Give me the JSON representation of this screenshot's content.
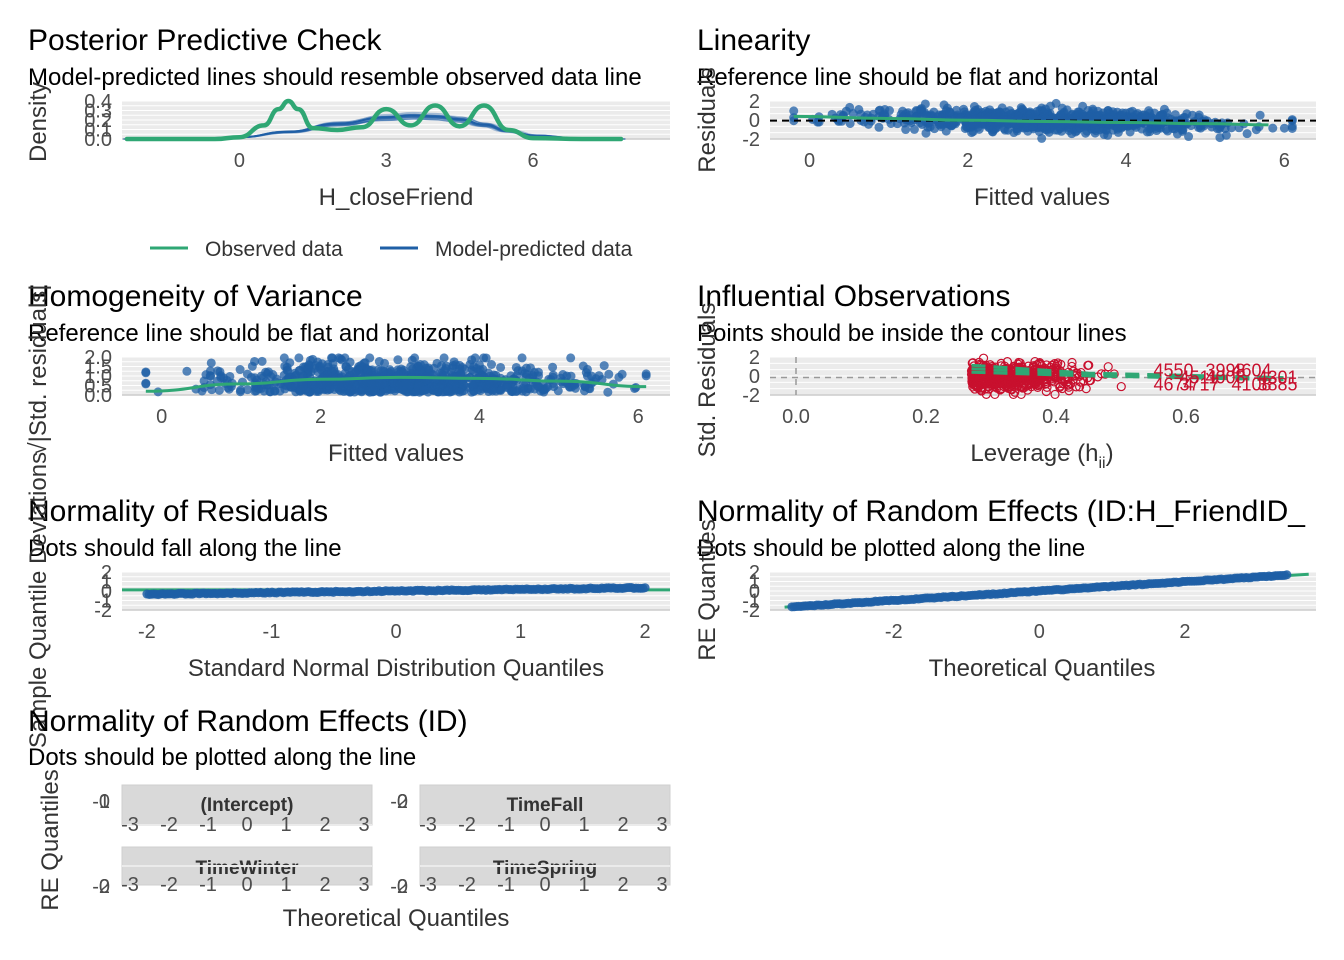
{
  "colors": {
    "green": "#2fa774",
    "blue": "#1f5fa6",
    "red": "#c8102e",
    "grid": "#ebebeb",
    "strip": "#d9d9d9"
  },
  "chart_data": [
    {
      "id": "ppc",
      "type": "line",
      "title": "Posterior Predictive Check",
      "subtitle": "Model-predicted lines should resemble observed data line",
      "xlabel": "H_closeFriend",
      "ylabel": "Density",
      "xlim": [
        -2.4,
        8.8
      ],
      "ylim": [
        0,
        0.42
      ],
      "xticks": [
        0,
        3,
        6
      ],
      "yticks": [
        "0.0",
        "0.1",
        "0.2",
        "0.3",
        "0.4"
      ],
      "legend": {
        "position": "bottom",
        "items": [
          {
            "name": "Observed data",
            "color": "green"
          },
          {
            "name": "Model-predicted data",
            "color": "blue"
          }
        ]
      },
      "series": [
        {
          "name": "Model-predicted data",
          "color": "blue",
          "x": [
            -2.3,
            -1,
            0,
            1,
            2,
            3,
            3.5,
            4,
            4.5,
            5,
            5.5,
            6,
            7,
            7.8
          ],
          "y": [
            0,
            0.002,
            0.02,
            0.08,
            0.17,
            0.24,
            0.26,
            0.25,
            0.22,
            0.16,
            0.09,
            0.04,
            0.005,
            0
          ]
        },
        {
          "name": "Observed data",
          "color": "green",
          "x": [
            -2.3,
            -0.5,
            0,
            0.5,
            0.8,
            1.0,
            1.2,
            1.5,
            2,
            2.5,
            3,
            3.5,
            4,
            4.5,
            5,
            5.5,
            6,
            7,
            7.8
          ],
          "y": [
            0,
            0,
            0.02,
            0.15,
            0.33,
            0.42,
            0.33,
            0.12,
            0.1,
            0.13,
            0.33,
            0.15,
            0.37,
            0.14,
            0.37,
            0.1,
            0.01,
            0,
            0
          ]
        }
      ]
    },
    {
      "id": "lin",
      "type": "scatter",
      "title": "Linearity",
      "subtitle": "Reference line should be flat and horizontal",
      "xlabel": "Fitted values",
      "ylabel": "Residuals",
      "xlim": [
        -0.5,
        6.4
      ],
      "ylim": [
        -3,
        3.2
      ],
      "xticks": [
        0,
        2,
        4,
        6
      ],
      "yticks": [
        "-2",
        "0",
        "2"
      ],
      "reference_line": 0,
      "smooth": {
        "x": [
          -0.2,
          1,
          2,
          3,
          4,
          5,
          5.8
        ],
        "y": [
          0.7,
          0.35,
          0.05,
          -0.15,
          -0.3,
          -0.5,
          -0.7
        ]
      }
    },
    {
      "id": "hom",
      "type": "scatter",
      "title": "Homogeneity of Variance",
      "subtitle": "Reference line should be flat and horizontal",
      "xlabel": "Fitted values",
      "ylabel": "√|Std. residuals|",
      "xlim": [
        -0.5,
        6.4
      ],
      "ylim": [
        0,
        2.05
      ],
      "xticks": [
        0,
        2,
        4,
        6
      ],
      "yticks": [
        "0.0",
        "0.5",
        "1.0",
        "1.5",
        "2.0"
      ],
      "smooth": {
        "x": [
          -0.2,
          1,
          2,
          3,
          4,
          5,
          6.1
        ],
        "y": [
          0.2,
          0.6,
          0.85,
          0.95,
          0.9,
          0.75,
          0.45
        ]
      }
    },
    {
      "id": "inf",
      "type": "scatter",
      "title": "Influential Observations",
      "subtitle": "Points should be inside the contour lines",
      "xlabel": "Leverage (h",
      "xlabel_sub": "ii",
      "xlabel_end": ")",
      "ylabel": "Std. Residuals",
      "xlim": [
        -0.04,
        0.8
      ],
      "ylim": [
        -3,
        3.5
      ],
      "xticks": [
        "0.0",
        "0.2",
        "0.4",
        "0.6"
      ],
      "yticks": [
        "-2",
        "0",
        "2"
      ],
      "labels": [
        "4674",
        "4511",
        "3998",
        "4108",
        "4301",
        "4550",
        "3717",
        "4008",
        "4604",
        "3885"
      ]
    },
    {
      "id": "nres",
      "type": "qq",
      "title": "Normality of Residuals",
      "subtitle": "Dots should fall along the line",
      "xlabel": "Standard Normal Distribution Quantiles",
      "ylabel": "Sample Quantile Deviations",
      "xlim": [
        -2.2,
        2.2
      ],
      "ylim": [
        -2.6,
        2.6
      ],
      "xticks": [
        "-2",
        "-1",
        "0",
        "1",
        "2"
      ],
      "yticks": [
        "-2",
        "-1",
        "0",
        "1",
        "2"
      ]
    },
    {
      "id": "nre1",
      "type": "qq",
      "title": "Normality of Random Effects (ID:H_FriendID_",
      "subtitle": "Dots should be plotted along the line",
      "xlabel": "Theoretical Quantiles",
      "ylabel": "RE Quantiles",
      "xlim": [
        -3.7,
        3.8
      ],
      "ylim": [
        -2.6,
        2.6
      ],
      "xticks": [
        "-2",
        "0",
        "2"
      ],
      "yticks": [
        "-2",
        "-1",
        "0",
        "1",
        "2"
      ]
    },
    {
      "id": "nre2",
      "type": "qq",
      "title": "Normality of Random Effects (ID)",
      "subtitle": "Dots should be plotted along the line",
      "xlabel": "Theoretical Quantiles",
      "ylabel": "RE Quantiles",
      "panels": [
        {
          "name": "(Intercept)",
          "ytick_top": "0",
          "ytick_bot": "-1"
        },
        {
          "name": "TimeFall",
          "ytick_top": "0",
          "ytick_bot": "-2"
        },
        {
          "name": "TimeWinter",
          "ytick_top": "0",
          "ytick_bot": "-2"
        },
        {
          "name": "TimeSpring",
          "ytick_top": "0",
          "ytick_bot": "-2"
        }
      ],
      "xticks": [
        "-3",
        "-2",
        "-1",
        "0",
        "1",
        "2",
        "3"
      ]
    }
  ]
}
